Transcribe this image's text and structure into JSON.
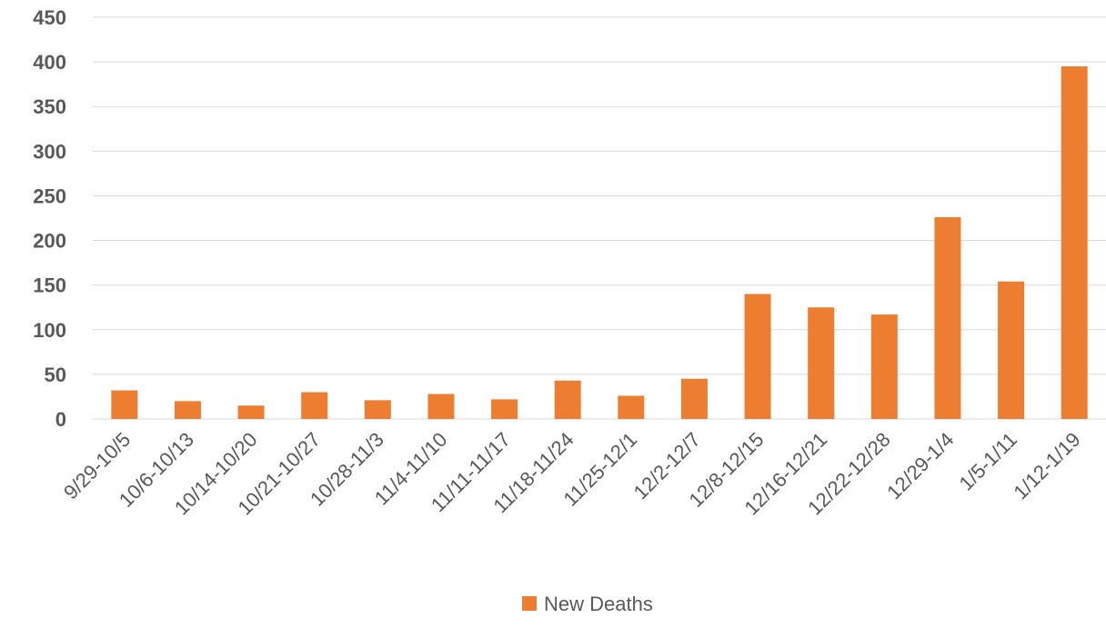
{
  "chart_data": {
    "type": "bar",
    "categories": [
      "9/29-10/5",
      "10/6-10/13",
      "10/14-10/20",
      "10/21-10/27",
      "10/28-11/3",
      "11/4-11/10",
      "11/11-11/17",
      "11/18-11/24",
      "11/25-12/1",
      "12/2-12/7",
      "12/8-12/15",
      "12/16-12/21",
      "12/22-12/28",
      "12/29-1/4",
      "1/5-1/11",
      "1/12-1/19"
    ],
    "series": [
      {
        "name": "New Deaths",
        "values": [
          32,
          20,
          15,
          30,
          21,
          28,
          22,
          43,
          26,
          45,
          140,
          125,
          117,
          226,
          154,
          395
        ],
        "color": "#ED7D31"
      }
    ],
    "yticks": [
      "0",
      "50",
      "100",
      "150",
      "200",
      "250",
      "300",
      "350",
      "400",
      "450"
    ],
    "ylim": [
      0,
      450
    ],
    "grid": true,
    "legend_position": "bottom"
  }
}
